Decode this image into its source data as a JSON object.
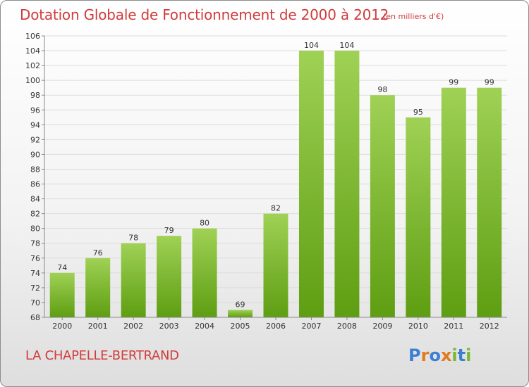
{
  "header": {
    "title": "Dotation Globale de Fonctionnement de 2000 à 2012",
    "unit": "(en milliers d'€)"
  },
  "footer": {
    "commune": "LA CHAPELLE-BERTRAND",
    "logo": [
      "P",
      "r",
      "o",
      "x",
      "i",
      "t",
      "i"
    ]
  },
  "colors": {
    "title": "#d23b3b",
    "bar_top": "#9fd155",
    "bar_bottom": "#5e9e12",
    "grid": "#dcdcdc",
    "axis": "#888888",
    "logo": [
      "#3b7fd4",
      "#e07b1f",
      "#3b7fd4",
      "#e07b1f",
      "#7cb82f",
      "#3b7fd4",
      "#7cb82f"
    ]
  },
  "chart_data": {
    "type": "bar",
    "categories": [
      "2000",
      "2001",
      "2002",
      "2003",
      "2004",
      "2005",
      "2006",
      "2007",
      "2008",
      "2009",
      "2010",
      "2011",
      "2012"
    ],
    "values": [
      74,
      76,
      78,
      79,
      80,
      69,
      82,
      104,
      104,
      98,
      95,
      99,
      99
    ],
    "ylim": [
      68,
      106
    ],
    "yticks": [
      68,
      70,
      72,
      74,
      76,
      78,
      80,
      82,
      84,
      86,
      88,
      90,
      92,
      94,
      96,
      98,
      100,
      102,
      104,
      106
    ],
    "grid": true,
    "xlabel": "",
    "ylabel": ""
  }
}
